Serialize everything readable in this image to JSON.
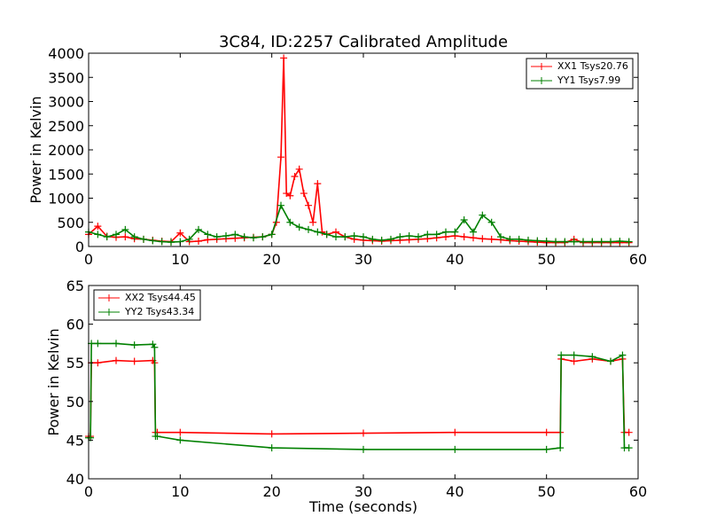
{
  "figure": {
    "title": "3C84, ID:2257 Calibrated Amplitude"
  },
  "chart_data": [
    {
      "type": "line",
      "title": "3C84, ID:2257 Calibrated Amplitude",
      "xlabel": "",
      "ylabel": "Power in Kelvin",
      "xlim": [
        0,
        60
      ],
      "ylim": [
        0,
        4000
      ],
      "xticks": [
        "0",
        "10",
        "20",
        "30",
        "40",
        "50",
        "60"
      ],
      "yticks": [
        "0",
        "500",
        "1000",
        "1500",
        "2000",
        "2500",
        "3000",
        "3500",
        "4000"
      ],
      "legend_position": "top-right",
      "grid": false,
      "series": [
        {
          "name": "XX1 Tsys20.76",
          "color": "#ff0000",
          "x": [
            0,
            1,
            2,
            3,
            4,
            5,
            6,
            7,
            8,
            9,
            10,
            11,
            12,
            13,
            14,
            15,
            16,
            17,
            18,
            19,
            20,
            20.5,
            21,
            21.3,
            21.6,
            22,
            22.5,
            23,
            23.5,
            24,
            24.5,
            25,
            25.5,
            26,
            27,
            28,
            29,
            30,
            31,
            32,
            33,
            34,
            35,
            36,
            37,
            38,
            39,
            40,
            41,
            42,
            43,
            44,
            45,
            46,
            47,
            48,
            49,
            50,
            51,
            52,
            53,
            54,
            55,
            56,
            57,
            58,
            59
          ],
          "y": [
            250,
            420,
            210,
            190,
            200,
            160,
            150,
            130,
            110,
            100,
            280,
            100,
            110,
            140,
            150,
            160,
            170,
            180,
            190,
            200,
            250,
            500,
            1850,
            3900,
            1100,
            1050,
            1450,
            1600,
            1100,
            850,
            500,
            1300,
            300,
            250,
            300,
            200,
            150,
            130,
            120,
            110,
            120,
            130,
            140,
            150,
            160,
            180,
            200,
            220,
            200,
            180,
            160,
            150,
            140,
            120,
            110,
            100,
            90,
            80,
            80,
            80,
            150,
            80,
            80,
            80,
            80,
            80,
            80
          ]
        },
        {
          "name": "YY1 Tsys7.99",
          "color": "#008000",
          "x": [
            0,
            1,
            2,
            3,
            4,
            5,
            6,
            7,
            8,
            9,
            10,
            11,
            12,
            13,
            14,
            15,
            16,
            17,
            18,
            19,
            20,
            21,
            22,
            23,
            24,
            25,
            26,
            27,
            28,
            29,
            30,
            31,
            32,
            33,
            34,
            35,
            36,
            37,
            38,
            39,
            40,
            41,
            42,
            43,
            44,
            45,
            46,
            47,
            48,
            49,
            50,
            51,
            52,
            53,
            54,
            55,
            56,
            57,
            58,
            59
          ],
          "y": [
            300,
            250,
            200,
            250,
            350,
            200,
            150,
            120,
            100,
            90,
            100,
            150,
            350,
            250,
            200,
            220,
            250,
            200,
            180,
            200,
            250,
            850,
            500,
            400,
            350,
            300,
            250,
            200,
            200,
            220,
            200,
            150,
            130,
            150,
            200,
            220,
            200,
            250,
            250,
            300,
            300,
            550,
            300,
            650,
            500,
            200,
            150,
            150,
            130,
            120,
            110,
            100,
            100,
            100,
            100,
            100,
            100,
            100,
            110,
            100
          ]
        }
      ]
    },
    {
      "type": "line",
      "title": "",
      "xlabel": "Time (seconds)",
      "ylabel": "Power in Kelvin",
      "xlim": [
        0,
        60
      ],
      "ylim": [
        40,
        65
      ],
      "xticks": [
        "0",
        "10",
        "20",
        "30",
        "40",
        "50",
        "60"
      ],
      "yticks": [
        "40",
        "45",
        "50",
        "55",
        "60",
        "65"
      ],
      "legend_position": "top-left",
      "grid": false,
      "series": [
        {
          "name": "XX2 Tsys44.45",
          "color": "#ff0000",
          "x": [
            0,
            0.2,
            0.3,
            1,
            3,
            5,
            7,
            7.2,
            7.3,
            7.5,
            10,
            20,
            30,
            40,
            50,
            51.5,
            51.6,
            53,
            55,
            57,
            58.3,
            58.5,
            59
          ],
          "y": [
            45.5,
            45.5,
            55,
            55,
            55.3,
            55.2,
            55.3,
            55,
            46,
            46,
            46,
            45.8,
            45.9,
            46,
            46,
            46,
            55.5,
            55.2,
            55.5,
            55.2,
            55.5,
            46,
            46
          ]
        },
        {
          "name": "YY2 Tsys43.34",
          "color": "#008000",
          "x": [
            0,
            0.2,
            0.3,
            1,
            3,
            5,
            7,
            7.2,
            7.3,
            7.5,
            10,
            20,
            30,
            40,
            50,
            51.5,
            51.6,
            53,
            55,
            57,
            58.3,
            58.5,
            59
          ],
          "y": [
            45.3,
            45.3,
            57.5,
            57.5,
            57.5,
            57.3,
            57.4,
            57,
            45.5,
            45.5,
            45,
            44,
            43.8,
            43.8,
            43.8,
            44,
            56,
            56,
            55.8,
            55.2,
            56,
            44,
            44
          ]
        }
      ]
    }
  ]
}
